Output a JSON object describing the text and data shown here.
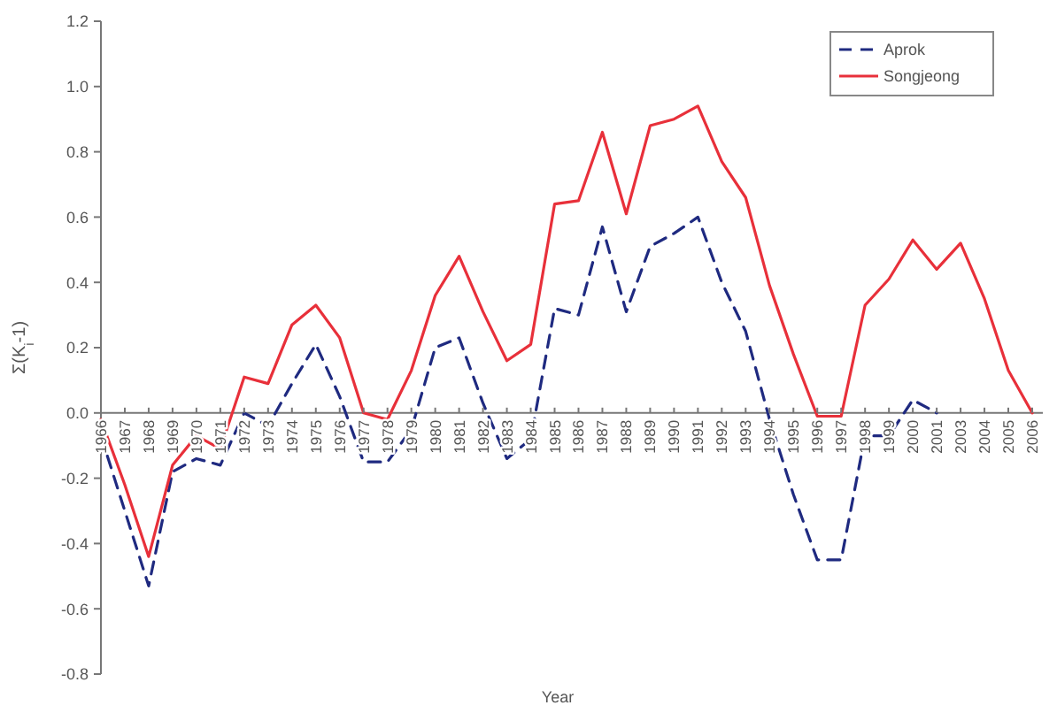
{
  "chart_data": {
    "type": "line",
    "xlabel": "Year",
    "ylabel": "Σ(K$_{i}$-1)",
    "categories": [
      "1966",
      "1967",
      "1968",
      "1969",
      "1970",
      "1971",
      "1972",
      "1973",
      "1974",
      "1975",
      "1976",
      "1977",
      "1978",
      "1979",
      "1980",
      "1981",
      "1982",
      "1983",
      "1984",
      "1985",
      "1986",
      "1987",
      "1988",
      "1989",
      "1990",
      "1991",
      "1992",
      "1993",
      "1994",
      "1995",
      "1996",
      "1997",
      "1998",
      "1999",
      "2000",
      "2001",
      "2003",
      "2004",
      "2005",
      "2006"
    ],
    "series": [
      {
        "name": "Aprok",
        "color": "#1f2a80",
        "line_style": "dashed",
        "values": [
          -0.07,
          -0.3,
          -0.53,
          -0.18,
          -0.14,
          -0.16,
          0.0,
          -0.04,
          0.09,
          0.21,
          0.05,
          -0.15,
          -0.15,
          -0.05,
          0.2,
          0.23,
          0.03,
          -0.14,
          -0.08,
          0.32,
          0.3,
          0.57,
          0.31,
          0.51,
          0.55,
          0.6,
          0.4,
          0.25,
          -0.02,
          -0.25,
          -0.45,
          -0.45,
          -0.07,
          -0.07,
          0.04,
          0.0,
          null,
          null,
          null,
          null
        ]
      },
      {
        "name": "Songjeong",
        "color": "#e8303a",
        "line_style": "solid",
        "values": [
          -0.02,
          -0.22,
          -0.44,
          -0.16,
          -0.07,
          -0.11,
          0.11,
          0.09,
          0.27,
          0.33,
          0.23,
          0.0,
          -0.02,
          0.13,
          0.36,
          0.48,
          0.31,
          0.16,
          0.21,
          0.64,
          0.65,
          0.86,
          0.61,
          0.88,
          0.9,
          0.94,
          0.77,
          0.66,
          0.39,
          0.18,
          -0.01,
          -0.01,
          0.33,
          0.41,
          0.53,
          0.44,
          0.52,
          0.35,
          0.13,
          0.0
        ]
      }
    ],
    "ylim": [
      -0.8,
      1.2
    ],
    "yticks": [
      {
        "value": -0.8,
        "label": "-0.8"
      },
      {
        "value": -0.6,
        "label": "-0.6"
      },
      {
        "value": -0.4,
        "label": "-0.4"
      },
      {
        "value": -0.2,
        "label": "-0.2"
      },
      {
        "value": 0,
        "label": "0.0"
      },
      {
        "value": 0.2,
        "label": "0.2"
      },
      {
        "value": 0.4,
        "label": "0.4"
      },
      {
        "value": 0.6,
        "label": "0.6"
      },
      {
        "value": 0.8,
        "label": "0.8"
      },
      {
        "value": 1.0,
        "label": "1.0"
      },
      {
        "value": 1.2,
        "label": "1.2"
      }
    ],
    "legend": "top right",
    "grid": false,
    "marker": "none"
  }
}
